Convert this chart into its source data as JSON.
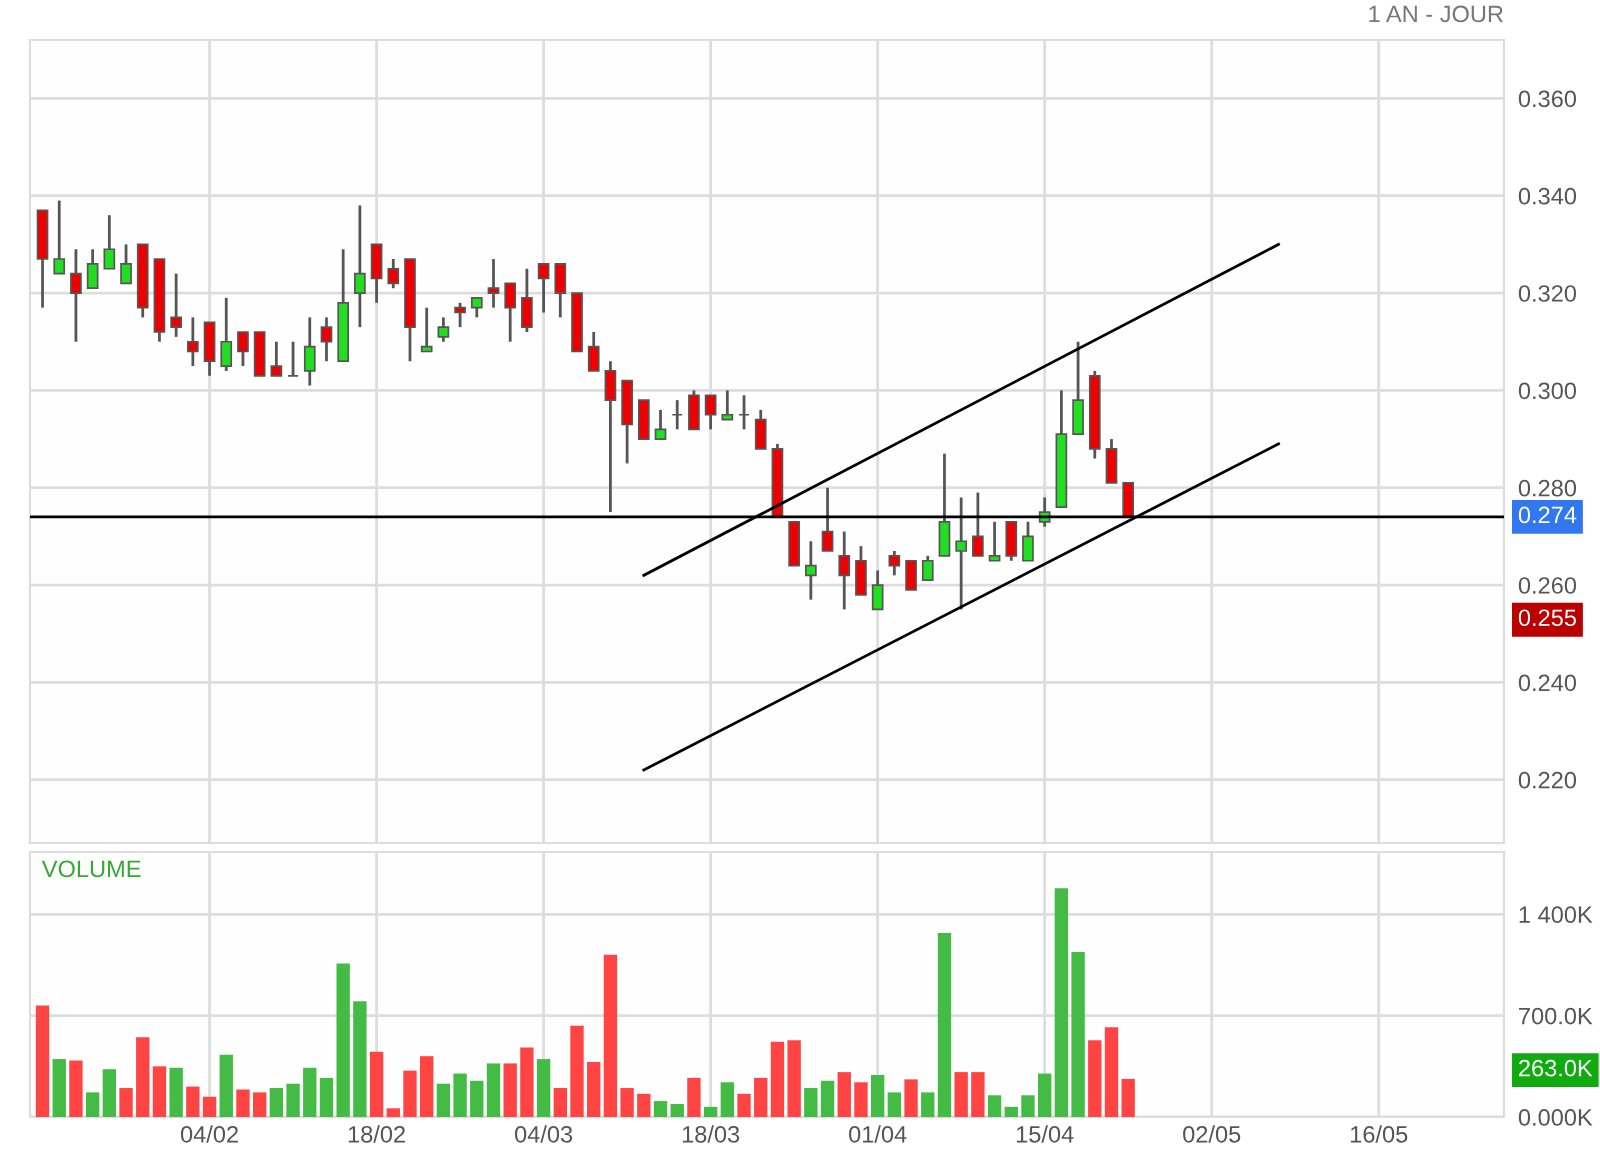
{
  "chart_data": [
    {
      "type": "candlestick",
      "subtitle": "1 AN - JOUR",
      "categories": [
        null,
        null,
        null,
        null,
        null,
        null,
        null,
        null,
        null,
        null,
        null,
        null,
        null,
        null,
        null,
        null,
        null,
        null,
        null,
        null,
        null,
        null,
        null,
        null,
        null,
        null,
        null,
        null,
        null,
        null,
        null,
        null,
        null,
        null,
        null,
        null,
        null,
        null,
        null,
        null,
        null,
        null,
        null,
        null,
        null,
        null,
        null,
        null,
        null,
        null,
        null,
        null,
        null,
        null,
        null,
        null,
        null,
        null,
        null,
        null,
        null,
        null,
        null,
        null,
        null,
        null,
        null,
        null,
        null,
        null,
        null,
        null,
        null,
        null,
        null,
        null,
        null,
        null,
        null,
        null,
        null,
        null,
        null,
        null,
        null,
        null,
        null,
        null
      ],
      "ohlc": [
        [
          0.337,
          0.337,
          0.317,
          0.327
        ],
        [
          0.324,
          0.339,
          0.324,
          0.327
        ],
        [
          0.324,
          0.329,
          0.31,
          0.32
        ],
        [
          0.321,
          0.329,
          0.321,
          0.326
        ],
        [
          0.325,
          0.336,
          0.325,
          0.329
        ],
        [
          0.322,
          0.33,
          0.322,
          0.326
        ],
        [
          0.33,
          0.33,
          0.315,
          0.317
        ],
        [
          0.327,
          0.327,
          0.31,
          0.312
        ],
        [
          0.315,
          0.324,
          0.311,
          0.313
        ],
        [
          0.31,
          0.315,
          0.305,
          0.308
        ],
        [
          0.314,
          0.314,
          0.303,
          0.306
        ],
        [
          0.305,
          0.319,
          0.304,
          0.31
        ],
        [
          0.312,
          0.312,
          0.305,
          0.308
        ],
        [
          0.312,
          0.312,
          0.303,
          0.303
        ],
        [
          0.305,
          0.31,
          0.303,
          0.303
        ],
        [
          0.303,
          0.31,
          0.303,
          0.303
        ],
        [
          0.304,
          0.315,
          0.301,
          0.309
        ],
        [
          0.313,
          0.315,
          0.306,
          0.31
        ],
        [
          0.306,
          0.329,
          0.306,
          0.318
        ],
        [
          0.32,
          0.338,
          0.313,
          0.324
        ],
        [
          0.33,
          0.33,
          0.318,
          0.323
        ],
        [
          0.325,
          0.327,
          0.321,
          0.322
        ],
        [
          0.327,
          0.327,
          0.306,
          0.313
        ],
        [
          0.308,
          0.317,
          0.308,
          0.309
        ],
        [
          0.311,
          0.315,
          0.31,
          0.313
        ],
        [
          0.317,
          0.318,
          0.313,
          0.316
        ],
        [
          0.317,
          0.319,
          0.315,
          0.319
        ],
        [
          0.321,
          0.327,
          0.317,
          0.32
        ],
        [
          0.322,
          0.322,
          0.31,
          0.317
        ],
        [
          0.319,
          0.325,
          0.312,
          0.313
        ],
        [
          0.326,
          0.326,
          0.316,
          0.323
        ],
        [
          0.326,
          0.326,
          0.315,
          0.32
        ],
        [
          0.32,
          0.32,
          0.308,
          0.308
        ],
        [
          0.309,
          0.312,
          0.304,
          0.304
        ],
        [
          0.304,
          0.306,
          0.275,
          0.298
        ],
        [
          0.302,
          0.302,
          0.285,
          0.293
        ],
        [
          0.298,
          0.298,
          0.29,
          0.29
        ],
        [
          0.29,
          0.296,
          0.29,
          0.292
        ],
        [
          0.295,
          0.298,
          0.292,
          0.295
        ],
        [
          0.299,
          0.3,
          0.292,
          0.292
        ],
        [
          0.299,
          0.299,
          0.292,
          0.295
        ],
        [
          0.294,
          0.3,
          0.294,
          0.295
        ],
        [
          0.295,
          0.299,
          0.292,
          0.295
        ],
        [
          0.294,
          0.296,
          0.288,
          0.288
        ],
        [
          0.288,
          0.289,
          0.274,
          0.274
        ],
        [
          0.273,
          0.273,
          0.264,
          0.264
        ],
        [
          0.262,
          0.269,
          0.257,
          0.264
        ],
        [
          0.271,
          0.28,
          0.267,
          0.267
        ],
        [
          0.266,
          0.271,
          0.255,
          0.262
        ],
        [
          0.265,
          0.268,
          0.258,
          0.258
        ],
        [
          0.255,
          0.263,
          0.255,
          0.26
        ],
        [
          0.266,
          0.267,
          0.262,
          0.264
        ],
        [
          0.265,
          0.265,
          0.259,
          0.259
        ],
        [
          0.261,
          0.266,
          0.261,
          0.265
        ],
        [
          0.266,
          0.287,
          0.266,
          0.273
        ],
        [
          0.267,
          0.278,
          0.255,
          0.269
        ],
        [
          0.27,
          0.279,
          0.266,
          0.266
        ],
        [
          0.265,
          0.273,
          0.265,
          0.266
        ],
        [
          0.273,
          0.273,
          0.265,
          0.266
        ],
        [
          0.265,
          0.273,
          0.265,
          0.27
        ],
        [
          0.273,
          0.278,
          0.272,
          0.275
        ],
        [
          0.276,
          0.3,
          0.276,
          0.291
        ],
        [
          0.291,
          0.31,
          0.291,
          0.298
        ],
        [
          0.303,
          0.304,
          0.286,
          0.288
        ],
        [
          0.288,
          0.29,
          0.281,
          0.281
        ],
        [
          0.281,
          0.281,
          0.274,
          0.274
        ],
        null,
        null,
        null,
        null,
        null,
        null,
        null,
        null,
        null,
        null,
        null,
        null,
        null,
        null,
        null,
        null,
        null,
        null,
        null,
        null,
        null,
        null
      ],
      "series": [
        {
          "type": "line",
          "color": "#000000",
          "values": [
            null,
            null,
            null,
            null,
            null,
            null,
            null,
            null,
            null,
            null,
            null,
            null,
            null,
            null,
            null,
            null,
            null,
            null,
            null,
            null,
            null,
            null,
            null,
            null,
            null,
            null,
            null,
            null,
            null,
            null,
            null,
            null,
            null,
            null,
            null,
            null,
            0.262,
            null,
            null,
            null,
            null,
            null,
            null,
            null,
            null,
            null,
            null,
            null,
            null,
            null,
            null,
            null,
            null,
            null,
            null,
            null,
            null,
            null,
            null,
            null,
            null,
            null,
            null,
            null,
            null,
            null,
            null,
            null,
            null,
            null,
            null,
            null,
            null,
            null,
            0.33,
            null,
            null,
            null,
            null,
            null,
            null,
            null,
            null,
            null,
            null,
            null,
            null,
            null
          ]
        },
        {
          "type": "line",
          "color": "#000000",
          "values": [
            null,
            null,
            null,
            null,
            null,
            null,
            null,
            null,
            null,
            null,
            null,
            null,
            null,
            null,
            null,
            null,
            null,
            null,
            null,
            null,
            null,
            null,
            null,
            null,
            null,
            null,
            null,
            null,
            null,
            null,
            null,
            null,
            null,
            null,
            null,
            null,
            0.222,
            null,
            null,
            null,
            null,
            null,
            null,
            null,
            null,
            null,
            null,
            null,
            null,
            null,
            null,
            null,
            null,
            null,
            null,
            null,
            null,
            null,
            null,
            null,
            null,
            null,
            null,
            null,
            null,
            null,
            null,
            null,
            null,
            null,
            null,
            null,
            null,
            null,
            0.289,
            null,
            null,
            null,
            null,
            null,
            null,
            null,
            null,
            null,
            null,
            null,
            null,
            null
          ]
        }
      ],
      "ylim": [
        0.207,
        0.372
      ],
      "yticks": [
        {
          "value": 0.22,
          "label": "0.220"
        },
        {
          "value": 0.24,
          "label": "0.240"
        },
        {
          "value": 0.26,
          "label": "0.260"
        },
        {
          "value": 0.28,
          "label": "0.280"
        },
        {
          "value": 0.3,
          "label": "0.300"
        },
        {
          "value": 0.32,
          "label": "0.320"
        },
        {
          "value": 0.34,
          "label": "0.340"
        },
        {
          "value": 0.36,
          "label": "0.360"
        }
      ],
      "ref_lines": [
        {
          "axis": "y",
          "value": 0.274,
          "label": "0.274",
          "color": "#000000"
        }
      ],
      "annotations": [
        "0.255"
      ],
      "grid": true
    },
    {
      "type": "bar",
      "title": "VOLUME",
      "categories": [
        null,
        null,
        null,
        null,
        null,
        null,
        null,
        null,
        null,
        null,
        "04/02",
        null,
        null,
        null,
        null,
        null,
        null,
        null,
        null,
        null,
        "18/02",
        null,
        null,
        null,
        null,
        null,
        null,
        null,
        null,
        null,
        "04/03",
        null,
        null,
        null,
        null,
        null,
        null,
        null,
        null,
        null,
        "18/03",
        null,
        null,
        null,
        null,
        null,
        null,
        null,
        null,
        null,
        "01/04",
        null,
        null,
        null,
        null,
        null,
        null,
        null,
        null,
        null,
        "15/04",
        null,
        null,
        null,
        null,
        null,
        null,
        null,
        null,
        null,
        "02/05",
        null,
        null,
        null,
        null,
        null,
        null,
        null,
        null,
        null,
        "16/05",
        null,
        null,
        null,
        null,
        null,
        null,
        null
      ],
      "values": [
        770,
        400,
        390,
        170,
        330,
        200,
        550,
        350,
        340,
        210,
        140,
        430,
        190,
        170,
        200,
        230,
        340,
        270,
        1060,
        800,
        450,
        60,
        320,
        420,
        230,
        300,
        250,
        370,
        370,
        480,
        400,
        200,
        630,
        380,
        1120,
        200,
        160,
        110,
        90,
        270,
        70,
        240,
        160,
        270,
        520,
        530,
        200,
        250,
        310,
        240,
        290,
        170,
        260,
        170,
        1270,
        310,
        310,
        150,
        70,
        150,
        300,
        1580,
        1140,
        530,
        620,
        263,
        null,
        null,
        null,
        null,
        null,
        null,
        null,
        null,
        null,
        null,
        null,
        null,
        null,
        null,
        null,
        null,
        null,
        null,
        null,
        null,
        null,
        null
      ],
      "colors": [
        "#ff4444",
        "#44bb44",
        "#ff4444",
        "#44bb44",
        "#44bb44",
        "#ff4444",
        "#ff4444",
        "#ff4444",
        "#44bb44",
        "#ff4444",
        "#ff4444",
        "#44bb44",
        "#ff4444",
        "#ff4444",
        "#44bb44",
        "#44bb44",
        "#44bb44",
        "#44bb44",
        "#44bb44",
        "#44bb44",
        "#ff4444",
        "#ff4444",
        "#ff4444",
        "#ff4444",
        "#44bb44",
        "#44bb44",
        "#44bb44",
        "#44bb44",
        "#ff4444",
        "#ff4444",
        "#44bb44",
        "#ff4444",
        "#ff4444",
        "#ff4444",
        "#ff4444",
        "#ff4444",
        "#ff4444",
        "#44bb44",
        "#44bb44",
        "#ff4444",
        "#44bb44",
        "#44bb44",
        "#ff4444",
        "#ff4444",
        "#ff4444",
        "#ff4444",
        "#44bb44",
        "#44bb44",
        "#ff4444",
        "#ff4444",
        "#44bb44",
        "#44bb44",
        "#ff4444",
        "#44bb44",
        "#44bb44",
        "#ff4444",
        "#ff4444",
        "#44bb44",
        "#44bb44",
        "#44bb44",
        "#44bb44",
        "#44bb44",
        "#44bb44",
        "#ff4444",
        "#ff4444",
        "#ff4444",
        null,
        null,
        null,
        null,
        null,
        null,
        null,
        null,
        null,
        null,
        null,
        null,
        null,
        null,
        null,
        null,
        null,
        null,
        null,
        null,
        null,
        null
      ],
      "ylim": [
        0,
        1830
      ],
      "yticks": [
        {
          "value": 0,
          "label": "0.000K"
        },
        {
          "value": 700,
          "label": "700.0K"
        },
        {
          "value": 1400,
          "label": "1 400K"
        }
      ],
      "annotations": [
        "263.0K"
      ],
      "grid": true
    }
  ]
}
